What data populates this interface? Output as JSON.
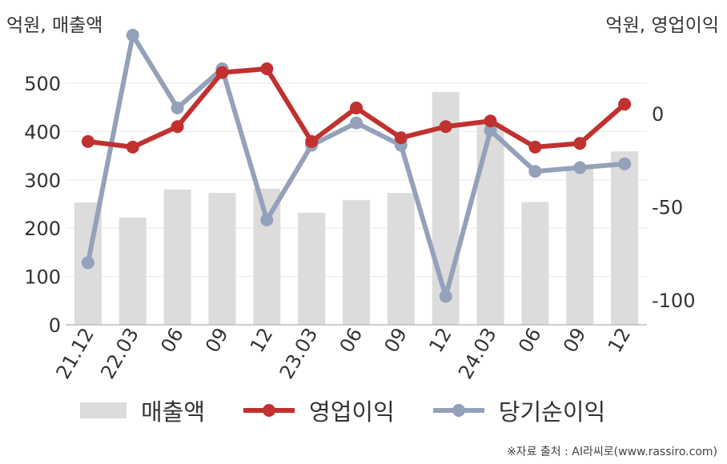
{
  "units": {
    "left": "억원, 매출액",
    "right": "억원, 영업이익"
  },
  "source": "※자료 출처 : AI라씨로(www.rassiro.com)",
  "colors": {
    "sales": "#dcdcdc",
    "op": "#c0312f",
    "net": "#94a1ba",
    "grid": "#e8e8e8",
    "axis": "#bdbdbd"
  },
  "chart_data": {
    "type": "bar",
    "categories": [
      "21.12",
      "22.03",
      "06",
      "09",
      "12",
      "23.03",
      "06",
      "09",
      "12",
      "24.03",
      "06",
      "09",
      "12"
    ],
    "y_left": {
      "ticks": [
        0,
        100,
        200,
        300,
        400,
        500
      ],
      "ylim": [
        0,
        500
      ]
    },
    "y_right": {
      "ticks": [
        0,
        -50,
        -100
      ],
      "ylim": [
        -115,
        30
      ]
    },
    "grid": true,
    "legend_position": "bottom",
    "series": [
      {
        "name": "매출액",
        "type": "bar",
        "axis": "left",
        "values": [
          253,
          222,
          280,
          273,
          282,
          232,
          258,
          273,
          482,
          416,
          254,
          328,
          359
        ]
      },
      {
        "name": "영업이익",
        "type": "line",
        "axis": "right",
        "values": [
          -15,
          -18,
          -7,
          22,
          24,
          -15,
          3,
          -13,
          -7,
          -4,
          -18,
          -16,
          5
        ]
      },
      {
        "name": "당기순이익",
        "type": "line",
        "axis": "right",
        "values": [
          -80,
          42,
          3,
          24,
          -57,
          -17,
          -5,
          -17,
          -98,
          -9,
          -31,
          -29,
          -27
        ]
      }
    ]
  }
}
